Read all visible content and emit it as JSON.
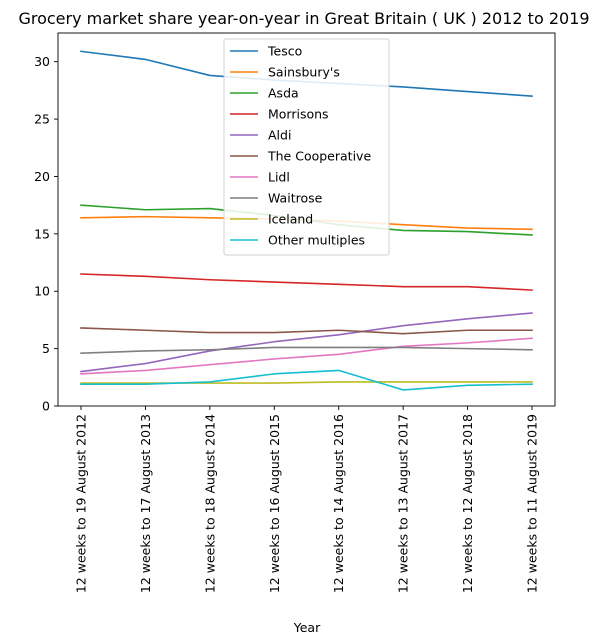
{
  "chart_data": {
    "type": "line",
    "title": "Grocery market share year-on-year in Great Britain ( UK ) 2012 to 2019",
    "xlabel": "Year",
    "ylabel": "",
    "categories": [
      "12 weeks to 19 August 2012",
      "12 weeks to 17 August 2013",
      "12 weeks to 18 August 2014",
      "12 weeks to 16 August 2015",
      "12 weeks to 14 August 2016",
      "12 weeks to 13 August 2017",
      "12 weeks to 12 August 2018",
      "12 weeks to 11 August 2019"
    ],
    "ylim": [
      0,
      32.5
    ],
    "yticks": [
      0,
      5,
      10,
      15,
      20,
      25,
      30
    ],
    "grid": false,
    "legend_position": "top-center",
    "series": [
      {
        "name": "Tesco",
        "color": "#1f77b4",
        "values": [
          30.9,
          30.2,
          28.8,
          28.4,
          28.1,
          27.8,
          27.4,
          27.0
        ]
      },
      {
        "name": "Sainsbury's",
        "color": "#ff7f0e",
        "values": [
          16.4,
          16.5,
          16.4,
          16.3,
          16.1,
          15.8,
          15.5,
          15.4
        ]
      },
      {
        "name": "Asda",
        "color": "#2ca02c",
        "values": [
          17.5,
          17.1,
          17.2,
          16.6,
          15.8,
          15.3,
          15.2,
          14.9
        ]
      },
      {
        "name": "Morrisons",
        "color": "#d62728",
        "values": [
          11.5,
          11.3,
          11.0,
          10.8,
          10.6,
          10.4,
          10.4,
          10.1
        ]
      },
      {
        "name": "Aldi",
        "color": "#9467bd",
        "values": [
          3.0,
          3.7,
          4.8,
          5.6,
          6.2,
          7.0,
          7.6,
          8.1
        ]
      },
      {
        "name": "The Cooperative",
        "color": "#8c564b",
        "values": [
          6.8,
          6.6,
          6.4,
          6.4,
          6.6,
          6.3,
          6.6,
          6.6
        ]
      },
      {
        "name": "Lidl",
        "color": "#e377c2",
        "values": [
          2.8,
          3.1,
          3.6,
          4.1,
          4.5,
          5.2,
          5.5,
          5.9
        ]
      },
      {
        "name": "Waitrose",
        "color": "#7f7f7f",
        "values": [
          4.6,
          4.8,
          4.9,
          5.1,
          5.1,
          5.1,
          5.0,
          4.9
        ]
      },
      {
        "name": "Iceland",
        "color": "#bcbd22",
        "values": [
          2.0,
          2.0,
          2.0,
          2.0,
          2.1,
          2.1,
          2.1,
          2.1
        ]
      },
      {
        "name": "Other multiples",
        "color": "#17becf",
        "values": [
          1.9,
          1.9,
          2.1,
          2.8,
          3.1,
          1.4,
          1.8,
          1.9
        ]
      }
    ]
  }
}
